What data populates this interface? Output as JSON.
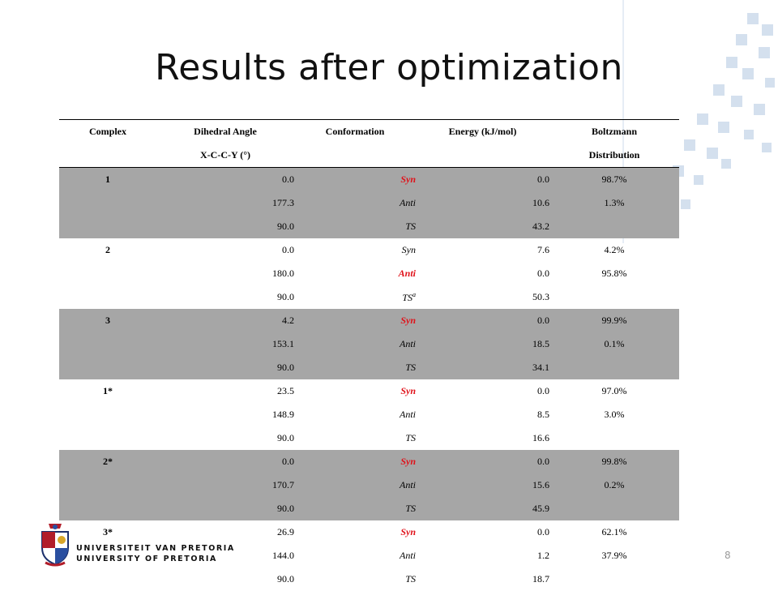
{
  "slide": {
    "title": "Results after optimization",
    "page_number": "8"
  },
  "table": {
    "header_row1": [
      "Complex",
      "Dihedral Angle",
      "Conformation",
      "Energy (kJ/mol)",
      "Boltzmann"
    ],
    "header_row2": [
      "",
      "X-C-C-Y (°)",
      "",
      "",
      "Distribution"
    ],
    "rows": [
      {
        "complex": "1",
        "angle": "0.0",
        "conf": "Syn",
        "energy": "0.0",
        "boltz": "98.7%"
      },
      {
        "complex": "",
        "angle": "177.3",
        "conf": "Anti",
        "energy": "10.6",
        "boltz": "1.3%"
      },
      {
        "complex": "",
        "angle": "90.0",
        "conf": "TS",
        "energy": "43.2",
        "boltz": ""
      },
      {
        "complex": "2",
        "angle": "0.0",
        "conf": "Syn",
        "energy": "7.6",
        "boltz": "4.2%"
      },
      {
        "complex": "",
        "angle": "180.0",
        "conf": "Anti",
        "energy": "0.0",
        "boltz": "95.8%"
      },
      {
        "complex": "",
        "angle": "90.0",
        "conf": "TS",
        "conf_sup": "a",
        "energy": "50.3",
        "boltz": ""
      },
      {
        "complex": "3",
        "angle": "4.2",
        "conf": "Syn",
        "energy": "0.0",
        "boltz": "99.9%"
      },
      {
        "complex": "",
        "angle": "153.1",
        "conf": "Anti",
        "energy": "18.5",
        "boltz": "0.1%"
      },
      {
        "complex": "",
        "angle": "90.0",
        "conf": "TS",
        "energy": "34.1",
        "boltz": ""
      },
      {
        "complex": "1*",
        "angle": "23.5",
        "conf": "Syn",
        "energy": "0.0",
        "boltz": "97.0%"
      },
      {
        "complex": "",
        "angle": "148.9",
        "conf": "Anti",
        "energy": "8.5",
        "boltz": "3.0%"
      },
      {
        "complex": "",
        "angle": "90.0",
        "conf": "TS",
        "energy": "16.6",
        "boltz": ""
      },
      {
        "complex": "2*",
        "angle": "0.0",
        "conf": "Syn",
        "energy": "0.0",
        "boltz": "99.8%"
      },
      {
        "complex": "",
        "angle": "170.7",
        "conf": "Anti",
        "energy": "15.6",
        "boltz": "0.2%"
      },
      {
        "complex": "",
        "angle": "90.0",
        "conf": "TS",
        "energy": "45.9",
        "boltz": ""
      },
      {
        "complex": "3*",
        "angle": "26.9",
        "conf": "Syn",
        "energy": "0.0",
        "boltz": "62.1%"
      },
      {
        "complex": "",
        "angle": "144.0",
        "conf": "Anti",
        "energy": "1.2",
        "boltz": "37.9%"
      },
      {
        "complex": "",
        "angle": "90.0",
        "conf": "TS",
        "energy": "18.7",
        "boltz": ""
      }
    ]
  },
  "logo": {
    "line1": "UNIVERSITEIT VAN PRETORIA",
    "line2": "UNIVERSITY OF PRETORIA"
  },
  "colors": {
    "shade": "#a6a6a6",
    "highlight_red": "#e0121a",
    "deco_blue": "#d4e0ee"
  },
  "icons": [
    "university-crest-icon"
  ]
}
